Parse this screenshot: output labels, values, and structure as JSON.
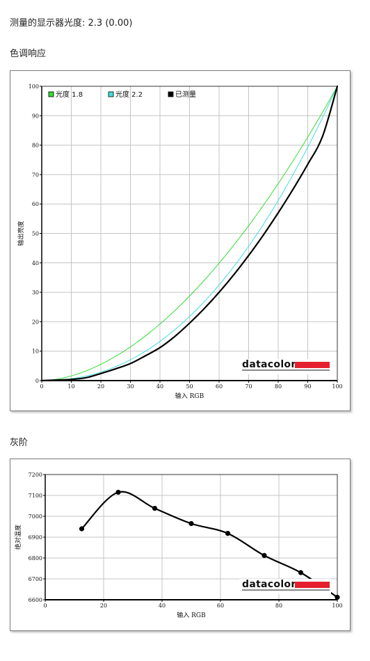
{
  "header": {
    "gamma_label": "测量的显示器光度:",
    "gamma_value": "2.3 (0.00)"
  },
  "tone_section": {
    "title": "色调响应"
  },
  "gray_section": {
    "title": "灰阶"
  },
  "logo": {
    "text": "datacolor",
    "bar_color": "#e5202e"
  },
  "chart_data": [
    {
      "type": "line",
      "title": "",
      "xlabel": "输入 RGB",
      "ylabel": "输出亮度",
      "xlim": [
        0,
        100
      ],
      "ylim": [
        0,
        100
      ],
      "x_ticks": [
        0,
        10,
        20,
        30,
        40,
        50,
        60,
        70,
        80,
        90,
        100
      ],
      "y_ticks": [
        0,
        10,
        20,
        30,
        40,
        50,
        60,
        70,
        80,
        90,
        100
      ],
      "grid": true,
      "legend_position": "top-left",
      "series": [
        {
          "name": "光度 1.8",
          "color": "#33dd33",
          "gamma": 1.8
        },
        {
          "name": "光度 2.2",
          "color": "#44dddd",
          "gamma": 2.2
        },
        {
          "name": "已测量",
          "color": "#000000",
          "x": [
            0,
            5,
            10,
            15,
            20,
            25,
            30,
            35,
            40,
            45,
            50,
            55,
            60,
            65,
            70,
            75,
            80,
            85,
            90,
            95,
            100
          ],
          "y": [
            0,
            0.2,
            0.4,
            1,
            2.4,
            4,
            5.8,
            8.4,
            11.2,
            15,
            19.5,
            24.5,
            30,
            36,
            42.5,
            49.5,
            57,
            65,
            73.5,
            83,
            100
          ]
        }
      ]
    },
    {
      "type": "line",
      "title": "",
      "xlabel": "输入 RGB",
      "ylabel": "绝对温度",
      "xlim": [
        0,
        100
      ],
      "ylim": [
        6600,
        7200
      ],
      "x_ticks": [
        0,
        20,
        40,
        60,
        80,
        100
      ],
      "y_ticks": [
        6600,
        6700,
        6800,
        6900,
        7000,
        7100,
        7200
      ],
      "grid": true,
      "series": [
        {
          "name": "",
          "color": "#000000",
          "x": [
            12.5,
            25,
            37.5,
            50,
            62.5,
            75,
            87.5,
            100
          ],
          "y": [
            6940,
            7115,
            7038,
            6965,
            6918,
            6812,
            6730,
            6612
          ]
        }
      ]
    }
  ]
}
